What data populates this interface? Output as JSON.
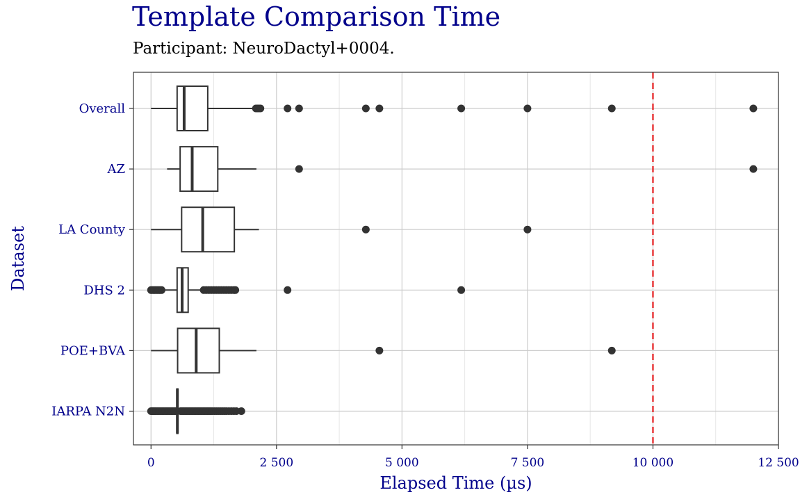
{
  "chart_data": {
    "type": "boxplot",
    "title": "Template Comparison Time",
    "subtitle": "Participant: NeuroDactyl+0004.",
    "xlabel": "Elapsed Time (µs)",
    "ylabel": "Dataset",
    "xlim": [
      -350,
      12500
    ],
    "x_ticks": [
      0,
      2500,
      5000,
      7500,
      10000,
      12500
    ],
    "x_tick_labels": [
      "0",
      "2 500",
      "5 000",
      "7 500",
      "10 000",
      "12 500"
    ],
    "grid": true,
    "reference_line": {
      "x": 10000,
      "color": "#e41a1c",
      "style": "dashed"
    },
    "categories": [
      "Overall",
      "AZ",
      "LA County",
      "DHS 2",
      "POE+BVA",
      "IARPA N2N"
    ],
    "boxes": [
      {
        "category": "Overall",
        "whisker_low": 0,
        "q1": 520,
        "median": 660,
        "q3": 1130,
        "whisker_high": 2080,
        "outliers": [
          2090,
          2120,
          2150,
          2180,
          2720,
          2950,
          4280,
          4550,
          6180,
          7500,
          9180,
          12000
        ]
      },
      {
        "category": "AZ",
        "whisker_low": 320,
        "q1": 580,
        "median": 820,
        "q3": 1330,
        "whisker_high": 2100,
        "outliers": [
          2950,
          12000
        ]
      },
      {
        "category": "LA County",
        "whisker_low": 0,
        "q1": 610,
        "median": 1030,
        "q3": 1660,
        "whisker_high": 2150,
        "outliers": [
          4280,
          7500
        ]
      },
      {
        "category": "DHS 2",
        "whisker_low": 250,
        "q1": 520,
        "median": 620,
        "q3": 740,
        "whisker_high": 1000,
        "outliers": [
          0,
          30,
          60,
          90,
          120,
          150,
          180,
          210,
          1050,
          1100,
          1150,
          1200,
          1250,
          1300,
          1350,
          1400,
          1450,
          1500,
          1550,
          1600,
          1650,
          1680,
          2720,
          6180
        ]
      },
      {
        "category": "POE+BVA",
        "whisker_low": 0,
        "q1": 530,
        "median": 900,
        "q3": 1360,
        "whisker_high": 2100,
        "outliers": [
          4550,
          9180
        ]
      },
      {
        "category": "IARPA N2N",
        "whisker_low": 505,
        "q1": 515,
        "median": 525,
        "q3": 535,
        "whisker_high": 550,
        "outliers": [
          0,
          20,
          40,
          60,
          80,
          100,
          130,
          160,
          190,
          220,
          250,
          280,
          310,
          340,
          370,
          400,
          430,
          460,
          490,
          590,
          620,
          650,
          680,
          710,
          740,
          770,
          800,
          830,
          860,
          890,
          920,
          950,
          980,
          1010,
          1040,
          1070,
          1100,
          1130,
          1160,
          1190,
          1220,
          1260,
          1300,
          1340,
          1380,
          1420,
          1460,
          1500,
          1550,
          1600,
          1650,
          1700,
          1800
        ]
      }
    ]
  },
  "colors": {
    "title": "#00008b",
    "box_stroke": "#333333",
    "point": "#333333",
    "grid_major": "#cccccc",
    "grid_minor": "#e6e6e6",
    "reference_line": "#e41a1c"
  }
}
